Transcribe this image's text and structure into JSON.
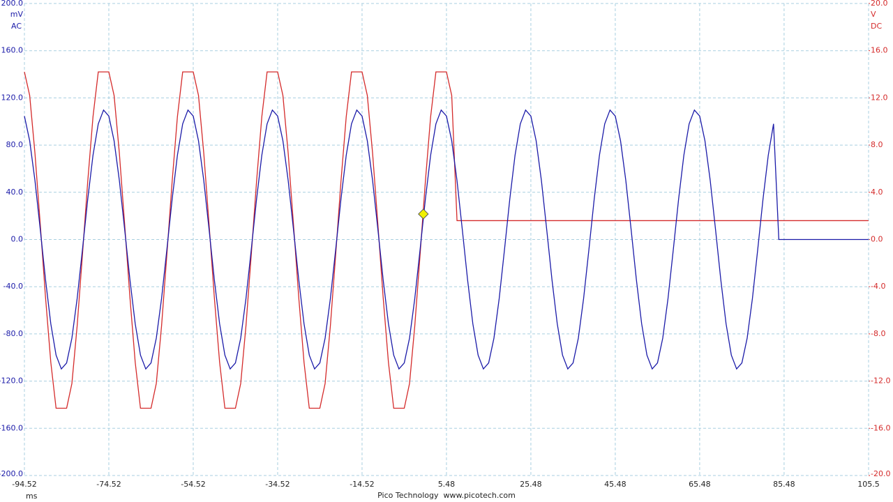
{
  "chart_data": {
    "type": "line",
    "y_unit": "mV",
    "y_coupling": "AC",
    "y2_unit": "V",
    "y2_coupling": "DC",
    "x_unit": "ms",
    "footer": "Pico Technology  www.picotech.com",
    "x": [
      -94.52,
      -93.27,
      -92.02,
      -90.77,
      -89.52,
      -88.27,
      -87.02,
      -85.77,
      -84.52,
      -83.27,
      -82.02,
      -80.77,
      -79.52,
      -78.27,
      -77.02,
      -75.77,
      -74.52,
      -73.27,
      -72.02,
      -70.77,
      -69.52,
      -68.27,
      -67.02,
      -65.77,
      -64.52,
      -63.27,
      -62.02,
      -60.77,
      -59.52,
      -58.27,
      -57.02,
      -55.77,
      -54.52,
      -53.27,
      -52.02,
      -50.77,
      -49.52,
      -48.27,
      -47.02,
      -45.77,
      -44.52,
      -43.27,
      -42.02,
      -40.77,
      -39.52,
      -38.27,
      -37.02,
      -35.77,
      -34.52,
      -33.27,
      -32.02,
      -30.77,
      -29.52,
      -28.27,
      -27.02,
      -25.77,
      -24.52,
      -23.27,
      -22.02,
      -20.77,
      -19.52,
      -18.27,
      -17.02,
      -15.77,
      -14.52,
      -13.27,
      -12.02,
      -10.77,
      -9.52,
      -8.27,
      -7.02,
      -5.77,
      -4.52,
      -3.27,
      -2.02,
      -0.77,
      0.48,
      1.73,
      2.98,
      4.23,
      5.48,
      6.73,
      7.98,
      9.23,
      10.48,
      11.73,
      12.98,
      14.23,
      15.48,
      16.73,
      17.98,
      19.23,
      20.48,
      21.73,
      22.98,
      24.23,
      25.48,
      26.73,
      27.98,
      29.23,
      30.48,
      31.73,
      32.98,
      34.23,
      35.48,
      36.73,
      37.98,
      39.23,
      40.48,
      41.73,
      42.98,
      44.23,
      45.48,
      46.73,
      47.98,
      49.23,
      50.48,
      51.73,
      52.98,
      54.23,
      55.48,
      56.73,
      57.98,
      59.23,
      60.48,
      61.73,
      62.98,
      64.23,
      65.48,
      66.73,
      67.98,
      69.23,
      70.48,
      71.73,
      72.98,
      74.23,
      75.48,
      76.73,
      77.98,
      79.23,
      80.48,
      81.73,
      82.98,
      84.23,
      85.48,
      86.73,
      87.98,
      89.23,
      90.48,
      91.73,
      92.98,
      94.23,
      95.48,
      96.73,
      97.98,
      99.23,
      100.48,
      101.73,
      102.98,
      104.23,
      105.48
    ],
    "series": [
      {
        "color": "#d42a2a",
        "axis": "y2",
        "values": [
          14.2,
          12.2,
          7.3,
          1.3,
          -4.9,
          -10.4,
          -14.3,
          -14.3,
          -14.3,
          -12.2,
          -7.3,
          -1.3,
          4.9,
          10.4,
          14.2,
          14.2,
          14.2,
          12.2,
          7.3,
          1.3,
          -4.9,
          -10.4,
          -14.3,
          -14.3,
          -14.3,
          -12.2,
          -7.3,
          -1.3,
          4.9,
          10.4,
          14.2,
          14.2,
          14.2,
          12.2,
          7.3,
          1.3,
          -4.9,
          -10.4,
          -14.3,
          -14.3,
          -14.3,
          -12.2,
          -7.3,
          -1.3,
          4.9,
          10.4,
          14.2,
          14.2,
          14.2,
          12.2,
          7.3,
          1.3,
          -4.9,
          -10.4,
          -14.3,
          -14.3,
          -14.3,
          -12.2,
          -7.3,
          -1.3,
          4.9,
          10.4,
          14.2,
          14.2,
          14.2,
          12.2,
          7.3,
          1.3,
          -4.9,
          -10.4,
          -14.3,
          -14.3,
          -14.3,
          -12.2,
          -7.3,
          -1.3,
          4.9,
          10.4,
          14.2,
          14.2,
          14.2,
          12.2,
          1.6,
          1.6,
          1.6,
          1.6,
          1.6,
          1.6,
          1.6,
          1.6,
          1.6,
          1.6,
          1.6,
          1.6,
          1.6,
          1.6,
          1.6,
          1.6,
          1.6,
          1.6,
          1.6,
          1.6,
          1.6,
          1.6,
          1.6,
          1.6,
          1.6,
          1.6,
          1.6,
          1.6,
          1.6,
          1.6,
          1.6,
          1.6,
          1.6,
          1.6,
          1.6,
          1.6,
          1.6,
          1.6,
          1.6,
          1.6,
          1.6,
          1.6,
          1.6,
          1.6,
          1.6,
          1.6,
          1.6,
          1.6,
          1.6,
          1.6,
          1.6,
          1.6,
          1.6,
          1.6,
          1.6,
          1.6,
          1.6,
          1.6,
          1.6,
          1.6,
          1.6,
          1.6,
          1.6,
          1.6,
          1.6,
          1.6,
          1.6,
          1.6,
          1.6,
          1.6,
          1.6,
          1.6,
          1.6,
          1.6,
          1.6,
          1.6,
          1.6,
          1.6,
          1.6
        ]
      },
      {
        "color": "#1a1aa8",
        "values": [
          104.6,
          83.6,
          49.9,
          8.6,
          -34,
          -71.4,
          -98,
          -109.7,
          -104.6,
          -83.6,
          -49.9,
          -8.6,
          34,
          71.4,
          98,
          109.7,
          104.6,
          83.6,
          49.9,
          8.6,
          -34,
          -71.4,
          -98,
          -109.7,
          -104.6,
          -83.6,
          -49.9,
          -8.6,
          34,
          71.4,
          98,
          109.7,
          104.6,
          83.6,
          49.9,
          8.6,
          -34,
          -71.4,
          -98,
          -109.7,
          -104.6,
          -83.6,
          -49.9,
          -8.6,
          34,
          71.4,
          98,
          109.7,
          104.6,
          83.6,
          49.9,
          8.6,
          -34,
          -71.4,
          -98,
          -109.7,
          -104.6,
          -83.6,
          -49.9,
          -8.6,
          34,
          71.4,
          98,
          109.7,
          104.6,
          83.6,
          49.9,
          8.6,
          -34,
          -71.4,
          -98,
          -109.7,
          -104.6,
          -83.6,
          -49.9,
          -8.6,
          34,
          71.4,
          98,
          109.7,
          104.6,
          83.6,
          49.9,
          8.6,
          -34,
          -71.4,
          -98,
          -109.7,
          -104.6,
          -83.6,
          -49.9,
          -8.6,
          34,
          71.4,
          98,
          109.7,
          104.6,
          83.6,
          49.9,
          8.6,
          -34,
          -71.4,
          -98,
          -109.7,
          -104.6,
          -83.6,
          -49.9,
          -8.6,
          34,
          71.4,
          98,
          109.7,
          104.6,
          83.6,
          49.9,
          8.6,
          -34,
          -71.4,
          -98,
          -109.7,
          -104.6,
          -83.6,
          -49.9,
          -8.6,
          34,
          71.4,
          98,
          109.7,
          104.6,
          83.6,
          49.9,
          8.6,
          -34,
          -71.4,
          -98,
          -109.7,
          -104.6,
          -83.6,
          -49.9,
          -8.6,
          34,
          71.4,
          98,
          0,
          0,
          0,
          0,
          0,
          0,
          0,
          0,
          0,
          0,
          0,
          0,
          0,
          0,
          0,
          0,
          0,
          0
        ]
      }
    ],
    "xlim": [
      -94.52,
      105.5
    ],
    "xticks": [
      -94.52,
      -74.52,
      -54.52,
      -34.52,
      -14.52,
      5.48,
      25.48,
      45.48,
      65.48,
      85.48,
      105.5
    ],
    "ylim": [
      -200,
      200
    ],
    "yticks": [
      {
        "value": 200,
        "label": "200.0"
      },
      {
        "value": 160,
        "label": "160.0"
      },
      {
        "value": 120,
        "label": "120.0"
      },
      {
        "value": 80,
        "label": "80.0"
      },
      {
        "value": 40,
        "label": "40.0"
      },
      {
        "value": 0,
        "label": "0.0"
      },
      {
        "value": -40,
        "label": "-40.0"
      },
      {
        "value": -80,
        "label": "-80.0"
      },
      {
        "value": -120,
        "label": "-120.0"
      },
      {
        "value": -160,
        "label": "-160.0"
      },
      {
        "value": -200,
        "label": "-200.0"
      }
    ],
    "y2lim": [
      -20,
      20
    ],
    "y2ticks": [
      {
        "value": 20,
        "label": "20.0"
      },
      {
        "value": 16,
        "label": "16.0"
      },
      {
        "value": 12,
        "label": "12.0"
      },
      {
        "value": 8,
        "label": "8.0"
      },
      {
        "value": 4,
        "label": "4.0"
      },
      {
        "value": 0,
        "label": "0.0"
      },
      {
        "value": -4,
        "label": "-4.0"
      },
      {
        "value": -8,
        "label": "-8.0"
      },
      {
        "value": -12,
        "label": "-12.0"
      },
      {
        "value": -16,
        "label": "-16.0"
      },
      {
        "value": -20,
        "label": "-20.0"
      }
    ],
    "grid": true,
    "trigger": {
      "x": 0,
      "y": 21.6,
      "color": "#f0f000"
    }
  }
}
